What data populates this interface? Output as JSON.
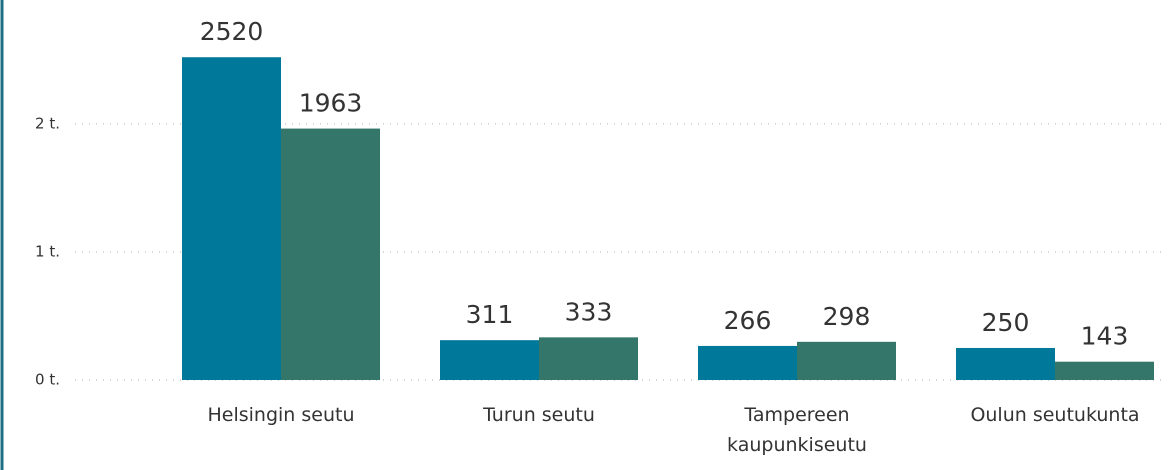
{
  "chart_data": {
    "type": "bar",
    "categories": [
      "Helsingin seutu",
      "Turun seutu",
      "Tampereen kaupunkiseutu",
      "Oulun seutukunta"
    ],
    "series": [
      {
        "color": "#007899",
        "values": [
          2520,
          311,
          266,
          250
        ]
      },
      {
        "color": "#34766a",
        "values": [
          1963,
          333,
          298,
          143
        ]
      }
    ],
    "ylim": [
      0,
      2920
    ],
    "yticks": [
      {
        "value": 0,
        "label": "0 t."
      },
      {
        "value": 1000,
        "label": "1 t."
      },
      {
        "value": 2000,
        "label": "2 t."
      }
    ],
    "grid": true
  }
}
